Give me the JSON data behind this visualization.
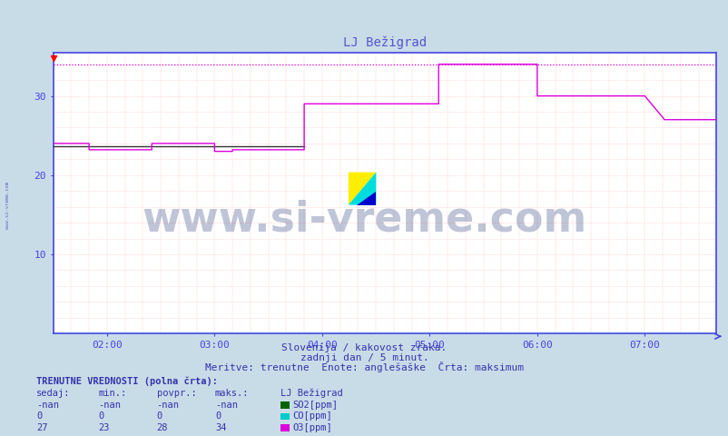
{
  "title": "LJ Bežigrad",
  "bg_color": "#c8dce8",
  "plot_bg_color": "#ffffff",
  "xlim_min": 0,
  "xlim_max": 370,
  "ylim_min": 0,
  "ylim_max": 35.5,
  "yticks": [
    10,
    20,
    30
  ],
  "xtick_labels": [
    "02:00",
    "03:00",
    "04:00",
    "05:00",
    "06:00",
    "07:00"
  ],
  "xtick_positions": [
    30,
    90,
    150,
    210,
    270,
    330
  ],
  "hline_max": 34,
  "subtitle1": "Slovenija / kakovost zraka.",
  "subtitle2": "zadnji dan / 5 minut.",
  "subtitle3": "Meritve: trenutne  Enote: anglešaške  Črta: maksimum",
  "table_header": "TRENUTNE VREDNOSTI (polna črta):",
  "col_headers": [
    "sedaj:",
    "min.:",
    "povpr.:",
    "maks.:",
    "LJ Bežigrad"
  ],
  "row1": [
    "-nan",
    "-nan",
    "-nan",
    "-nan",
    "SO2[ppm]"
  ],
  "row2": [
    "0",
    "0",
    "0",
    "0",
    "CO[ppm]"
  ],
  "row3": [
    "27",
    "23",
    "28",
    "34",
    "O3[ppm]"
  ],
  "so2_color": "#006400",
  "co_color": "#00cccc",
  "o3_color": "#dd00dd",
  "grid_color_h": "#ffaaaa",
  "grid_color_v": "#ff8888",
  "axis_color": "#4444dd",
  "text_color": "#3333aa",
  "title_color": "#5555cc",
  "watermark_color": "#1a3070",
  "watermark_alpha": 0.28,
  "sidebar_text": "www.si-vreme.com",
  "o3_data_x": [
    0,
    20,
    20,
    55,
    55,
    90,
    90,
    100,
    100,
    140,
    140,
    155,
    155,
    215,
    215,
    265,
    265,
    270,
    270,
    300,
    300,
    330,
    330,
    341,
    341,
    360,
    360,
    370
  ],
  "o3_data_y": [
    24,
    24,
    23.2,
    23.2,
    24,
    24,
    23,
    23,
    23.2,
    23.2,
    29,
    29,
    29,
    29,
    34,
    34,
    34,
    34,
    30,
    30,
    30,
    30,
    30,
    27,
    27,
    27,
    27,
    27
  ],
  "black_data_x": [
    0,
    140
  ],
  "black_data_y": [
    23.7,
    23.7
  ],
  "co_data_x": [
    0,
    370
  ],
  "co_data_y": [
    0.05,
    0.05
  ]
}
